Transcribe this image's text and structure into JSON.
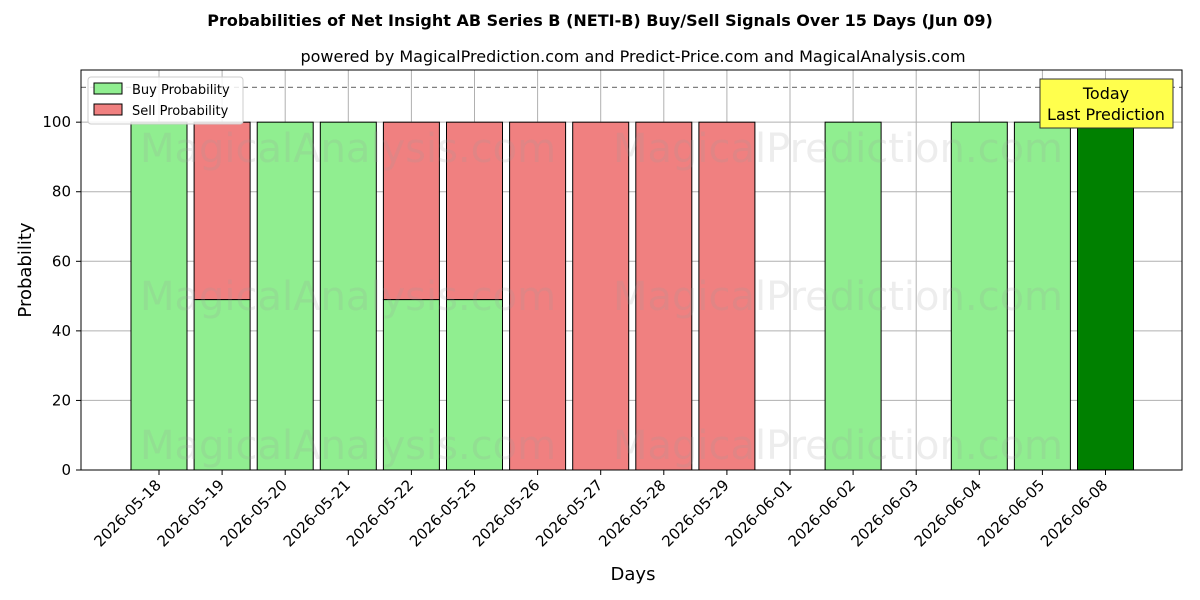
{
  "chart_data": {
    "type": "bar",
    "stacked": true,
    "title": "Probabilities of Net Insight AB Series B (NETI-B) Buy/Sell Signals Over 15 Days (Jun 09)",
    "subtitle": "powered by MagicalPrediction.com and Predict-Price.com and MagicalAnalysis.com",
    "xlabel": "Days",
    "ylabel": "Probability",
    "ylim": [
      0,
      115
    ],
    "yticks": [
      0,
      20,
      40,
      60,
      80,
      100
    ],
    "categories": [
      "2026-05-18",
      "2026-05-19",
      "2026-05-20",
      "2026-05-21",
      "2026-05-22",
      "2026-05-25",
      "2026-05-26",
      "2026-05-27",
      "2026-05-28",
      "2026-05-29",
      "2026-06-01",
      "2026-06-02",
      "2026-06-03",
      "2026-06-04",
      "2026-06-05",
      "2026-06-08"
    ],
    "series": [
      {
        "name": "Buy Probability",
        "color": "#90ee90",
        "values": [
          100,
          49,
          100,
          100,
          49,
          49,
          0,
          0,
          0,
          0,
          0,
          100,
          0,
          100,
          100,
          100
        ]
      },
      {
        "name": "Sell Probability",
        "color": "#f08080",
        "values": [
          0,
          51,
          0,
          0,
          51,
          51,
          100,
          100,
          100,
          100,
          0,
          0,
          0,
          0,
          0,
          0
        ]
      }
    ],
    "highlight": {
      "category": "2026-06-08",
      "color": "#008000"
    },
    "reference_line": {
      "y": 110,
      "style": "dashed",
      "color": "#808080"
    },
    "legend": {
      "placement": "top-left"
    },
    "grid": true,
    "annotation": {
      "lines": [
        "Today",
        "Last Prediction"
      ],
      "placement": "top-right",
      "background": "#ffff4d"
    },
    "watermarks": [
      "MagicalAnalysis.com",
      "MagicalPrediction.com"
    ]
  }
}
